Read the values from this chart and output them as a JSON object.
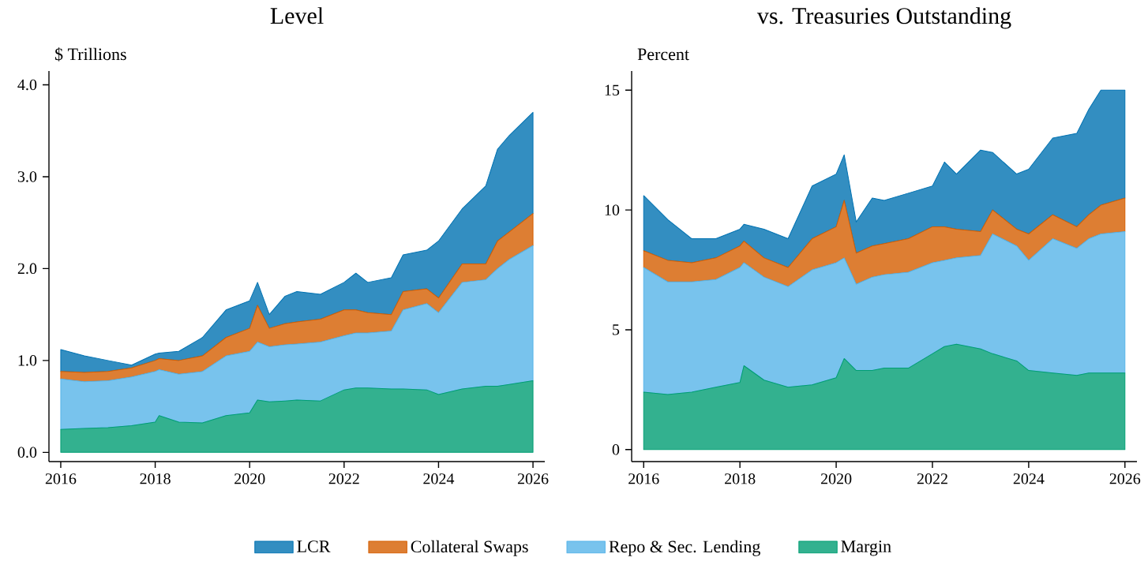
{
  "chart_data": [
    {
      "type": "area",
      "title": "Level",
      "ylabel": "$ Trillions",
      "stacked": true,
      "legend": "bottom",
      "x": [
        "2016-01",
        "2016-07",
        "2017-01",
        "2017-07",
        "2018-01",
        "2018-02",
        "2018-07",
        "2019-01",
        "2019-07",
        "2020-01",
        "2020-03",
        "2020-06",
        "2020-10",
        "2021-01",
        "2021-07",
        "2022-01",
        "2022-04",
        "2022-07",
        "2023-01",
        "2023-04",
        "2023-10",
        "2024-01",
        "2024-07",
        "2025-01",
        "2025-04",
        "2025-07",
        "2026-01"
      ],
      "xlim": [
        "2015-10",
        "2026-04"
      ],
      "xticks": [
        "2016",
        "2018",
        "2020",
        "2022",
        "2024",
        "2026"
      ],
      "ylim": [
        -0.1,
        4.15
      ],
      "yticks": [
        {
          "value": 0,
          "label": "0.0"
        },
        {
          "value": 1,
          "label": "1.0"
        },
        {
          "value": 2,
          "label": "2.0"
        },
        {
          "value": 3,
          "label": "3.0"
        },
        {
          "value": 4,
          "label": "4.0"
        }
      ],
      "series": [
        {
          "name": "Margin",
          "color": "#009e73",
          "values": [
            0.25,
            0.26,
            0.27,
            0.29,
            0.33,
            0.4,
            0.33,
            0.32,
            0.4,
            0.43,
            0.57,
            0.55,
            0.56,
            0.57,
            0.56,
            0.68,
            0.7,
            0.7,
            0.69,
            0.69,
            0.68,
            0.63,
            0.69,
            0.72,
            0.72,
            0.74,
            0.78
          ]
        },
        {
          "name": "Repo & Sec. Lending",
          "color": "#56b4e9",
          "values": [
            0.55,
            0.51,
            0.51,
            0.53,
            0.55,
            0.5,
            0.52,
            0.56,
            0.65,
            0.67,
            0.63,
            0.6,
            0.61,
            0.61,
            0.64,
            0.59,
            0.6,
            0.6,
            0.63,
            0.86,
            0.94,
            0.89,
            1.16,
            1.16,
            1.28,
            1.36,
            1.47
          ]
        },
        {
          "name": "Collateral Swaps",
          "color": "#d55e00",
          "values": [
            0.08,
            0.1,
            0.1,
            0.1,
            0.12,
            0.12,
            0.15,
            0.17,
            0.2,
            0.25,
            0.4,
            0.2,
            0.23,
            0.24,
            0.25,
            0.28,
            0.25,
            0.22,
            0.18,
            0.2,
            0.16,
            0.16,
            0.2,
            0.17,
            0.3,
            0.3,
            0.35
          ]
        },
        {
          "name": "LCR",
          "color": "#0072b2",
          "values": [
            0.24,
            0.18,
            0.12,
            0.03,
            0.07,
            0.06,
            0.1,
            0.2,
            0.3,
            0.3,
            0.25,
            0.15,
            0.3,
            0.33,
            0.27,
            0.3,
            0.4,
            0.33,
            0.4,
            0.4,
            0.42,
            0.62,
            0.6,
            0.85,
            1.0,
            1.05,
            1.1
          ]
        }
      ]
    },
    {
      "type": "area",
      "title": "vs. Treasuries Outstanding",
      "ylabel": "Percent",
      "stacked": true,
      "x": [
        "2016-01",
        "2016-07",
        "2017-01",
        "2017-07",
        "2018-01",
        "2018-02",
        "2018-07",
        "2019-01",
        "2019-07",
        "2020-01",
        "2020-03",
        "2020-06",
        "2020-10",
        "2021-01",
        "2021-07",
        "2022-01",
        "2022-04",
        "2022-07",
        "2023-01",
        "2023-04",
        "2023-10",
        "2024-01",
        "2024-07",
        "2025-01",
        "2025-04",
        "2025-07",
        "2026-01"
      ],
      "xlim": [
        "2015-10",
        "2026-04"
      ],
      "xticks": [
        "2016",
        "2018",
        "2020",
        "2022",
        "2024",
        "2026"
      ],
      "ylim": [
        -0.5,
        15.8
      ],
      "yticks": [
        0,
        5,
        10,
        15
      ],
      "series": [
        {
          "color": "#009e73",
          "values": [
            2.4,
            2.3,
            2.4,
            2.6,
            2.8,
            3.5,
            2.9,
            2.6,
            2.7,
            3.0,
            3.8,
            3.3,
            3.3,
            3.4,
            3.4,
            4.0,
            4.3,
            4.4,
            4.2,
            4.0,
            3.7,
            3.3,
            3.2,
            3.1,
            3.2,
            3.2,
            3.2
          ]
        },
        {
          "color": "#56b4e9",
          "values": [
            5.2,
            4.7,
            4.6,
            4.5,
            4.8,
            4.3,
            4.3,
            4.2,
            4.8,
            4.8,
            4.2,
            3.6,
            3.9,
            3.9,
            4.0,
            3.8,
            3.6,
            3.6,
            3.9,
            5.0,
            4.8,
            4.6,
            5.6,
            5.3,
            5.6,
            5.8,
            5.9
          ]
        },
        {
          "color": "#d55e00",
          "values": [
            0.7,
            0.9,
            0.8,
            0.9,
            0.9,
            0.9,
            0.8,
            0.8,
            1.3,
            1.5,
            2.4,
            1.3,
            1.3,
            1.3,
            1.4,
            1.5,
            1.4,
            1.2,
            1.0,
            1.0,
            0.7,
            1.1,
            1.0,
            0.9,
            1.0,
            1.2,
            1.4
          ]
        },
        {
          "color": "#0072b2",
          "values": [
            2.3,
            1.7,
            1.0,
            0.8,
            0.7,
            0.7,
            1.2,
            1.2,
            2.2,
            2.2,
            1.9,
            1.3,
            2.0,
            1.8,
            1.9,
            1.7,
            2.7,
            2.3,
            3.4,
            2.4,
            2.3,
            2.7,
            3.2,
            3.9,
            4.4,
            4.8,
            4.5
          ]
        }
      ]
    }
  ]
}
